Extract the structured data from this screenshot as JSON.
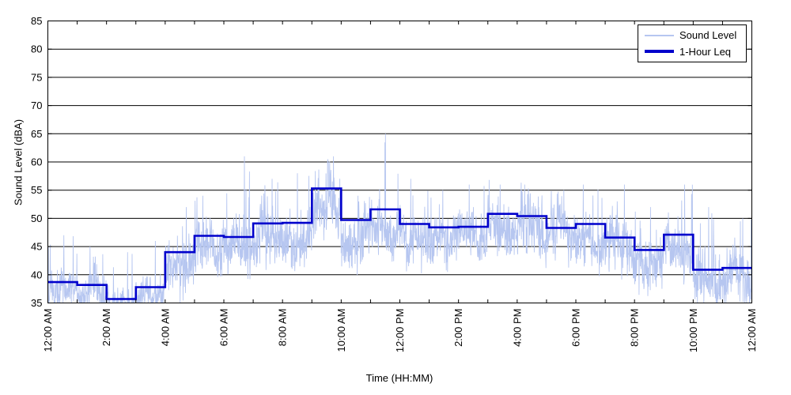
{
  "chart_data": {
    "type": "line",
    "title": "",
    "xlabel": "Time (HH:MM)",
    "ylabel": "Sound Level (dBA)",
    "ylim": [
      35,
      85
    ],
    "xlim_hours": [
      0,
      24
    ],
    "grid": "horizontal-solid-black",
    "y_ticks": [
      35,
      40,
      45,
      50,
      55,
      60,
      65,
      70,
      75,
      80,
      85
    ],
    "x_ticks": {
      "label_hours": [
        0,
        2,
        4,
        6,
        8,
        10,
        12,
        14,
        16,
        18,
        20,
        22,
        24
      ],
      "labels": [
        "12:00 AM",
        "2:00 AM",
        "4:00 AM",
        "6:00 AM",
        "8:00 AM",
        "10:00 AM",
        "12:00 PM",
        "2:00 PM",
        "4:00 PM",
        "6:00 PM",
        "8:00 PM",
        "10:00 PM",
        "12:00 AM"
      ],
      "minor_tick_every_hours": 1,
      "label_rotation_deg": -90
    },
    "legend": {
      "position": "top-right",
      "items": [
        {
          "label": "Sound Level",
          "color": "#b6c6f0",
          "line_weight": "thin"
        },
        {
          "label": "1-Hour Leq",
          "color": "#0000cc",
          "line_weight": "thick"
        }
      ]
    },
    "series": [
      {
        "name": "1-Hour Leq",
        "type": "step",
        "color": "#0000cc",
        "hours": [
          0,
          1,
          2,
          3,
          4,
          5,
          6,
          7,
          8,
          9,
          10,
          11,
          12,
          13,
          14,
          15,
          16,
          17,
          18,
          19,
          20,
          21,
          22,
          23
        ],
        "values": [
          38.7,
          38.2,
          35.7,
          37.8,
          44.0,
          46.9,
          46.7,
          49.1,
          49.2,
          55.3,
          49.7,
          51.6,
          49.0,
          48.4,
          48.5,
          50.8,
          50.4,
          48.3,
          49.0,
          46.6,
          44.4,
          47.1,
          40.9,
          41.2
        ]
      },
      {
        "name": "Sound Level",
        "type": "noisy-trace",
        "color": "#b6c6f0",
        "floor_dba": 35,
        "max_spike_dba": 65,
        "per_hour_envelope": [
          {
            "hour": 0,
            "mean": 36.8,
            "sd": 2.0,
            "peak": 47
          },
          {
            "hour": 1,
            "mean": 36.5,
            "sd": 1.8,
            "peak": 45
          },
          {
            "hour": 2,
            "mean": 35.4,
            "sd": 1.3,
            "peak": 44
          },
          {
            "hour": 3,
            "mean": 36.2,
            "sd": 1.8,
            "peak": 46
          },
          {
            "hour": 4,
            "mean": 41.5,
            "sd": 2.6,
            "peak": 52
          },
          {
            "hour": 5,
            "mean": 44.3,
            "sd": 2.4,
            "peak": 54
          },
          {
            "hour": 6,
            "mean": 44.6,
            "sd": 2.6,
            "peak": 61
          },
          {
            "hour": 7,
            "mean": 46.6,
            "sd": 2.4,
            "peak": 57
          },
          {
            "hour": 8,
            "mean": 47.0,
            "sd": 2.4,
            "peak": 58
          },
          {
            "hour": 9,
            "mean": 51.5,
            "sd": 3.0,
            "peak": 61
          },
          {
            "hour": 10,
            "mean": 47.0,
            "sd": 2.4,
            "peak": 54
          },
          {
            "hour": 11,
            "mean": 48.3,
            "sd": 2.4,
            "peak": 65
          },
          {
            "hour": 12,
            "mean": 46.8,
            "sd": 2.4,
            "peak": 57
          },
          {
            "hour": 13,
            "mean": 46.4,
            "sd": 2.2,
            "peak": 55
          },
          {
            "hour": 14,
            "mean": 46.4,
            "sd": 2.2,
            "peak": 56
          },
          {
            "hour": 15,
            "mean": 48.3,
            "sd": 2.4,
            "peak": 56
          },
          {
            "hour": 16,
            "mean": 48.0,
            "sd": 2.4,
            "peak": 56
          },
          {
            "hour": 17,
            "mean": 46.4,
            "sd": 2.2,
            "peak": 55
          },
          {
            "hour": 18,
            "mean": 45.8,
            "sd": 2.4,
            "peak": 56
          },
          {
            "hour": 19,
            "mean": 44.3,
            "sd": 2.4,
            "peak": 56
          },
          {
            "hour": 20,
            "mean": 42.4,
            "sd": 2.6,
            "peak": 52
          },
          {
            "hour": 21,
            "mean": 44.3,
            "sd": 2.4,
            "peak": 56
          },
          {
            "hour": 22,
            "mean": 39.3,
            "sd": 2.4,
            "peak": 52
          },
          {
            "hour": 23,
            "mean": 39.3,
            "sd": 2.4,
            "peak": 50
          }
        ]
      }
    ],
    "colors": {
      "trace": "#b6c6f0",
      "leq": "#0000cc",
      "grid": "#000000",
      "axis": "#000000",
      "background": "#ffffff"
    }
  }
}
